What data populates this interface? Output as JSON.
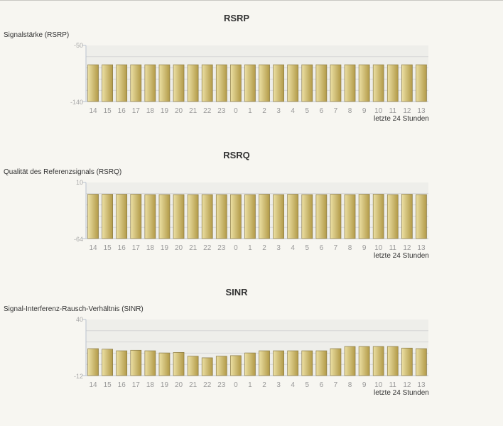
{
  "colors": {
    "bar_light": "#ece0a4",
    "bar_dark": "#b29a48",
    "bar_border": "#8a7a45",
    "plot_bg": "#eeeeea",
    "grid": "#d6d6d6",
    "axis": "#b9c3d0"
  },
  "chart_data": [
    {
      "type": "bar",
      "title": "RSRP",
      "ylabel": "Signalstärke (RSRP)",
      "xlabel": "letzte 24 Stunden",
      "ylim": [
        -140,
        -50
      ],
      "ylim_labels": [
        "-50",
        "-140"
      ],
      "categories": [
        "14",
        "15",
        "16",
        "17",
        "18",
        "19",
        "20",
        "21",
        "22",
        "23",
        "0",
        "1",
        "2",
        "3",
        "4",
        "5",
        "6",
        "7",
        "8",
        "9",
        "10",
        "11",
        "12",
        "13"
      ],
      "values": [
        -81,
        -81,
        -81,
        -81,
        -81,
        -81,
        -81,
        -81,
        -81,
        -81,
        -81,
        -81,
        -81,
        -81,
        -81,
        -81,
        -81,
        -81,
        -81,
        -81,
        -81,
        -81,
        -81,
        -81
      ],
      "grid": true
    },
    {
      "type": "bar",
      "title": "RSRQ",
      "ylabel": "Qualität des Referenzsignals (RSRQ)",
      "xlabel": "letzte 24 Stunden",
      "ylim": [
        -64,
        10
      ],
      "ylim_labels": [
        "10",
        "-64"
      ],
      "categories": [
        "14",
        "15",
        "16",
        "17",
        "18",
        "19",
        "20",
        "21",
        "22",
        "23",
        "0",
        "1",
        "2",
        "3",
        "4",
        "5",
        "6",
        "7",
        "8",
        "9",
        "10",
        "11",
        "12",
        "13"
      ],
      "values": [
        -5.5,
        -5.5,
        -5.5,
        -5.5,
        -6,
        -6,
        -6,
        -6,
        -6,
        -6,
        -6,
        -6,
        -5.5,
        -6,
        -5.5,
        -6,
        -6,
        -5.5,
        -6,
        -5.5,
        -5.5,
        -6,
        -5.5,
        -6
      ],
      "grid": true
    },
    {
      "type": "bar",
      "title": "SINR",
      "ylabel": "Signal-Interferenz-Rausch-Verhältnis (SINR)",
      "xlabel": "letzte 24 Stunden",
      "ylim": [
        -12,
        40
      ],
      "ylim_labels": [
        "40",
        "-12"
      ],
      "categories": [
        "14",
        "15",
        "16",
        "17",
        "18",
        "19",
        "20",
        "21",
        "22",
        "23",
        "0",
        "1",
        "2",
        "3",
        "4",
        "5",
        "6",
        "7",
        "8",
        "9",
        "10",
        "11",
        "12",
        "13"
      ],
      "values": [
        13,
        12.5,
        11,
        11.5,
        11,
        9,
        9.5,
        6,
        4.5,
        6,
        6.5,
        9,
        11,
        11,
        11,
        11,
        11,
        13,
        15,
        15,
        15,
        15,
        13.5,
        13
      ],
      "grid": true
    }
  ]
}
